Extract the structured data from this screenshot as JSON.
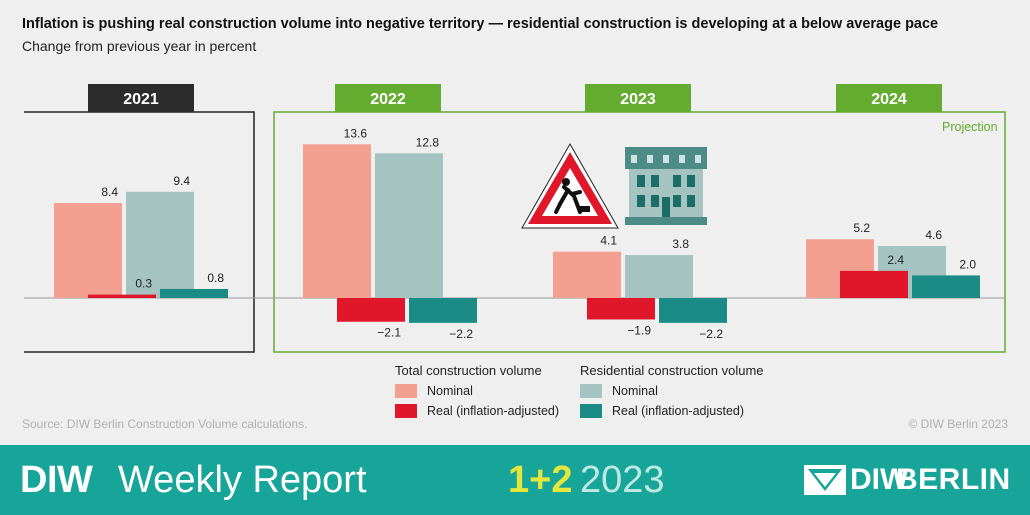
{
  "title": "Inflation is pushing real construction volume into negative territory — residential construction is developing at a below average pace",
  "subtitle": "Change from previous year in percent",
  "source": "Source: DIW Berlin Construction Volume calculations.",
  "copyright": "© DIW Berlin 2023",
  "projection_label": "Projection",
  "legend": {
    "total_heading": "Total construction volume",
    "residential_heading": "Residential construction volume",
    "total_nominal": "Nominal",
    "total_real": "Real (inflation-adjusted)",
    "res_nominal": "Nominal",
    "res_real": "Real (inflation-adjusted)"
  },
  "colors": {
    "total_nominal": "#f3a090",
    "total_real": "#e0162b",
    "res_nominal": "#a4c3c1",
    "res_real": "#1b8c85",
    "year_2021_bg": "#2c2c2c",
    "year_projection_bg": "#64ac30",
    "footer_bg": "#17a59a",
    "issue_color": "#e4e63a"
  },
  "icons": [
    "construction-warning-sign-icon",
    "residential-building-icon"
  ],
  "footer": {
    "diw": "DIW",
    "weekly": "Weekly Report",
    "issue": "1+2",
    "year": "2023",
    "logo_diw": "DIW",
    "logo_berlin": "BERLIN"
  },
  "chart_data": {
    "type": "bar",
    "categories": [
      "2021",
      "2022",
      "2023",
      "2024"
    ],
    "series": [
      {
        "name": "Total construction volume – Nominal",
        "values": [
          8.4,
          13.6,
          4.1,
          5.2
        ]
      },
      {
        "name": "Total construction volume – Real (inflation-adjusted)",
        "values": [
          0.3,
          -2.1,
          -1.9,
          2.4
        ]
      },
      {
        "name": "Residential construction volume – Nominal",
        "values": [
          9.4,
          12.8,
          3.8,
          4.6
        ]
      },
      {
        "name": "Residential construction volume – Real (inflation-adjusted)",
        "values": [
          0.8,
          -2.2,
          -2.2,
          2.0
        ]
      }
    ],
    "data_labels": [
      [
        "8.4",
        "0.3",
        "9.4",
        "0.8"
      ],
      [
        "13.6",
        "−2.1",
        "12.8",
        "−2.2"
      ],
      [
        "4.1",
        "−1.9",
        "3.8",
        "−2.2"
      ],
      [
        "5.2",
        "2.4",
        "4.6",
        "2.0"
      ]
    ],
    "projection_categories": [
      "2022",
      "2023",
      "2024"
    ],
    "grid": false
  }
}
